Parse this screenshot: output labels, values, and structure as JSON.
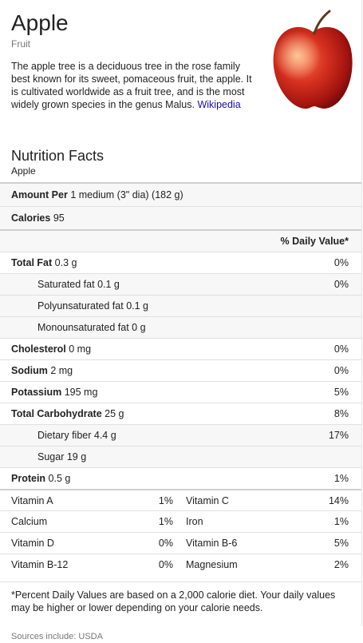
{
  "header": {
    "title": "Apple",
    "subtitle": "Fruit",
    "description": "The apple tree is a deciduous tree in the rose family best known for its sweet, pomaceous fruit, the apple. It is cultivated worldwide as a fruit tree, and is the most widely grown species in the genus Malus.",
    "wiki_link": "Wikipedia"
  },
  "nutrition": {
    "title": "Nutrition Facts",
    "food": "Apple",
    "amount_per_label": "Amount Per",
    "amount_per_value": "1 medium (3\" dia) (182 g)",
    "calories_label": "Calories",
    "calories_value": "95",
    "daily_value_header": "% Daily Value*",
    "rows": [
      {
        "label": "Total Fat",
        "value": "0.3 g",
        "pct": "0%"
      },
      {
        "label": "Saturated fat",
        "value": "0.1 g",
        "pct": "0%"
      },
      {
        "label": "Polyunsaturated fat",
        "value": "0.1 g",
        "pct": ""
      },
      {
        "label": "Monounsaturated fat",
        "value": "0 g",
        "pct": ""
      },
      {
        "label": "Cholesterol",
        "value": "0 mg",
        "pct": "0%"
      },
      {
        "label": "Sodium",
        "value": "2 mg",
        "pct": "0%"
      },
      {
        "label": "Potassium",
        "value": "195 mg",
        "pct": "5%"
      },
      {
        "label": "Total Carbohydrate",
        "value": "25 g",
        "pct": "8%"
      },
      {
        "label": "Dietary fiber",
        "value": "4.4 g",
        "pct": "17%"
      },
      {
        "label": "Sugar",
        "value": "19 g",
        "pct": ""
      },
      {
        "label": "Protein",
        "value": "0.5 g",
        "pct": "1%"
      }
    ],
    "vitamins": [
      {
        "left_name": "Vitamin A",
        "left_pct": "1%",
        "right_name": "Vitamin C",
        "right_pct": "14%"
      },
      {
        "left_name": "Calcium",
        "left_pct": "1%",
        "right_name": "Iron",
        "right_pct": "1%"
      },
      {
        "left_name": "Vitamin D",
        "left_pct": "0%",
        "right_name": "Vitamin B-6",
        "right_pct": "5%"
      },
      {
        "left_name": "Vitamin B-12",
        "left_pct": "0%",
        "right_name": "Magnesium",
        "right_pct": "2%"
      }
    ],
    "footnote": "*Percent Daily Values are based on a 2,000 calorie diet. Your daily values may be higher or lower depending on your calorie needs.",
    "sources": "Sources include: USDA"
  },
  "colors": {
    "link": "#1a0dab",
    "apple_red": "#c8281e",
    "shade": "#f7f7f7"
  }
}
